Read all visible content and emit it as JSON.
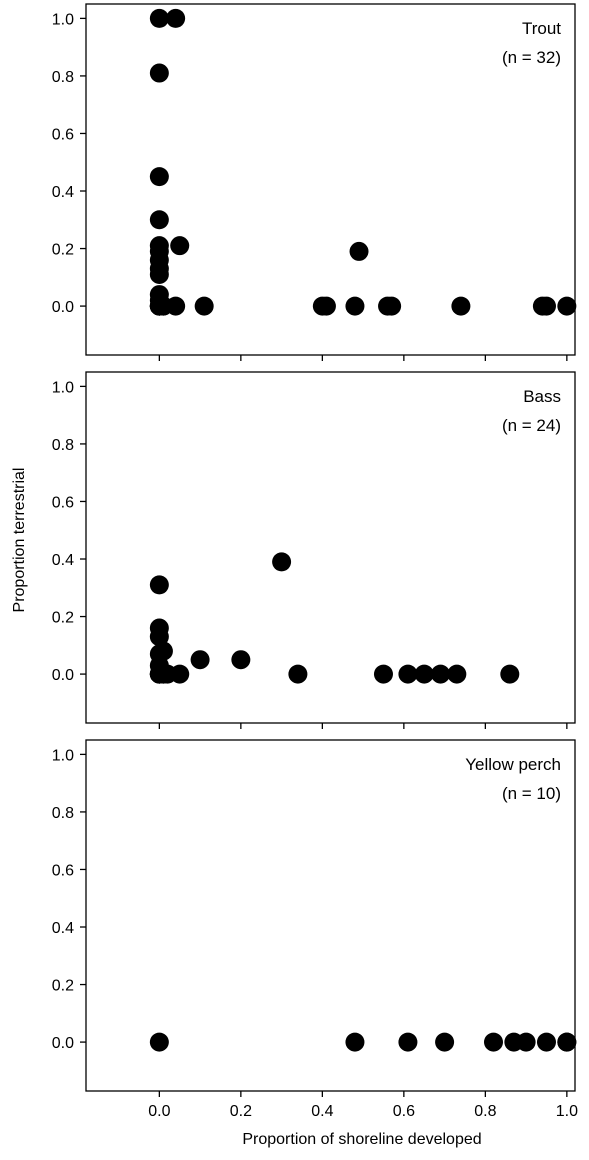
{
  "figure": {
    "ylabel": "Proportion terrestrial",
    "xlabel": "Proportion of shoreline developed"
  },
  "colors": {
    "marker": "#000000",
    "axis": "#000000",
    "background": "#ffffff"
  },
  "chart_data": [
    {
      "type": "scatter",
      "title": "Trout",
      "subtitle": "(n = 32)",
      "xlim": [
        -0.18,
        1.02
      ],
      "ylim": [
        -0.17,
        1.05
      ],
      "xticks": [
        0.0,
        0.2,
        0.4,
        0.6,
        0.8,
        1.0
      ],
      "xtick_labels": [],
      "yticks": [
        0.0,
        0.2,
        0.4,
        0.6,
        0.8,
        1.0
      ],
      "ytick_labels": [
        "0.0",
        "0.2",
        "0.4",
        "0.6",
        "0.8",
        "1.0"
      ],
      "grid": false,
      "points": [
        {
          "x": 0.0,
          "y": 1.0
        },
        {
          "x": 0.04,
          "y": 1.0
        },
        {
          "x": 0.0,
          "y": 0.81
        },
        {
          "x": 0.0,
          "y": 0.45
        },
        {
          "x": 0.0,
          "y": 0.3
        },
        {
          "x": 0.0,
          "y": 0.21
        },
        {
          "x": 0.05,
          "y": 0.21
        },
        {
          "x": 0.0,
          "y": 0.19
        },
        {
          "x": 0.0,
          "y": 0.16
        },
        {
          "x": 0.0,
          "y": 0.13
        },
        {
          "x": 0.0,
          "y": 0.11
        },
        {
          "x": 0.0,
          "y": 0.04
        },
        {
          "x": 0.0,
          "y": 0.02
        },
        {
          "x": 0.0,
          "y": 0.0
        },
        {
          "x": 0.0,
          "y": 0.0
        },
        {
          "x": 0.0,
          "y": 0.0
        },
        {
          "x": 0.01,
          "y": 0.0
        },
        {
          "x": 0.04,
          "y": 0.0
        },
        {
          "x": 0.11,
          "y": 0.0
        },
        {
          "x": 0.49,
          "y": 0.19
        },
        {
          "x": 0.4,
          "y": 0.0
        },
        {
          "x": 0.41,
          "y": 0.0
        },
        {
          "x": 0.48,
          "y": 0.0
        },
        {
          "x": 0.56,
          "y": 0.0
        },
        {
          "x": 0.57,
          "y": 0.0
        },
        {
          "x": 0.74,
          "y": 0.0
        },
        {
          "x": 0.94,
          "y": 0.0
        },
        {
          "x": 0.95,
          "y": 0.0
        },
        {
          "x": 1.0,
          "y": 0.0
        },
        {
          "x": 0.0,
          "y": 0.0
        },
        {
          "x": 0.0,
          "y": 0.0
        },
        {
          "x": 0.01,
          "y": 0.0
        }
      ]
    },
    {
      "type": "scatter",
      "title": "Bass",
      "subtitle": "(n = 24)",
      "xlim": [
        -0.18,
        1.02
      ],
      "ylim": [
        -0.17,
        1.05
      ],
      "xticks": [
        0.0,
        0.2,
        0.4,
        0.6,
        0.8,
        1.0
      ],
      "xtick_labels": [],
      "yticks": [
        0.0,
        0.2,
        0.4,
        0.6,
        0.8,
        1.0
      ],
      "ytick_labels": [
        "0.0",
        "0.2",
        "0.4",
        "0.6",
        "0.8",
        "1.0"
      ],
      "grid": false,
      "points": [
        {
          "x": 0.0,
          "y": 0.31
        },
        {
          "x": 0.0,
          "y": 0.16
        },
        {
          "x": 0.0,
          "y": 0.13
        },
        {
          "x": 0.0,
          "y": 0.07
        },
        {
          "x": 0.01,
          "y": 0.08
        },
        {
          "x": 0.0,
          "y": 0.03
        },
        {
          "x": 0.0,
          "y": 0.0
        },
        {
          "x": 0.01,
          "y": 0.0
        },
        {
          "x": 0.02,
          "y": 0.0
        },
        {
          "x": 0.05,
          "y": 0.0
        },
        {
          "x": 0.1,
          "y": 0.05
        },
        {
          "x": 0.2,
          "y": 0.05
        },
        {
          "x": 0.3,
          "y": 0.39
        },
        {
          "x": 0.34,
          "y": 0.0
        },
        {
          "x": 0.55,
          "y": 0.0
        },
        {
          "x": 0.61,
          "y": 0.0
        },
        {
          "x": 0.65,
          "y": 0.0
        },
        {
          "x": 0.69,
          "y": 0.0
        },
        {
          "x": 0.73,
          "y": 0.0
        },
        {
          "x": 0.86,
          "y": 0.0
        },
        {
          "x": 0.0,
          "y": 0.0
        },
        {
          "x": 0.0,
          "y": 0.0
        },
        {
          "x": 0.01,
          "y": 0.0
        },
        {
          "x": 0.0,
          "y": 0.0
        }
      ]
    },
    {
      "type": "scatter",
      "title": "Yellow perch",
      "subtitle": "(n = 10)",
      "xlim": [
        -0.18,
        1.02
      ],
      "ylim": [
        -0.17,
        1.05
      ],
      "xticks": [
        0.0,
        0.2,
        0.4,
        0.6,
        0.8,
        1.0
      ],
      "xtick_labels": [
        "0.0",
        "0.2",
        "0.4",
        "0.6",
        "0.8",
        "1.0"
      ],
      "yticks": [
        0.0,
        0.2,
        0.4,
        0.6,
        0.8,
        1.0
      ],
      "ytick_labels": [
        "0.0",
        "0.2",
        "0.4",
        "0.6",
        "0.8",
        "1.0"
      ],
      "grid": false,
      "points": [
        {
          "x": 0.0,
          "y": 0.0
        },
        {
          "x": 0.48,
          "y": 0.0
        },
        {
          "x": 0.61,
          "y": 0.0
        },
        {
          "x": 0.7,
          "y": 0.0
        },
        {
          "x": 0.82,
          "y": 0.0
        },
        {
          "x": 0.87,
          "y": 0.0
        },
        {
          "x": 0.9,
          "y": 0.0
        },
        {
          "x": 0.95,
          "y": 0.0
        },
        {
          "x": 1.0,
          "y": 0.0
        },
        {
          "x": 1.0,
          "y": 0.0
        }
      ]
    }
  ]
}
